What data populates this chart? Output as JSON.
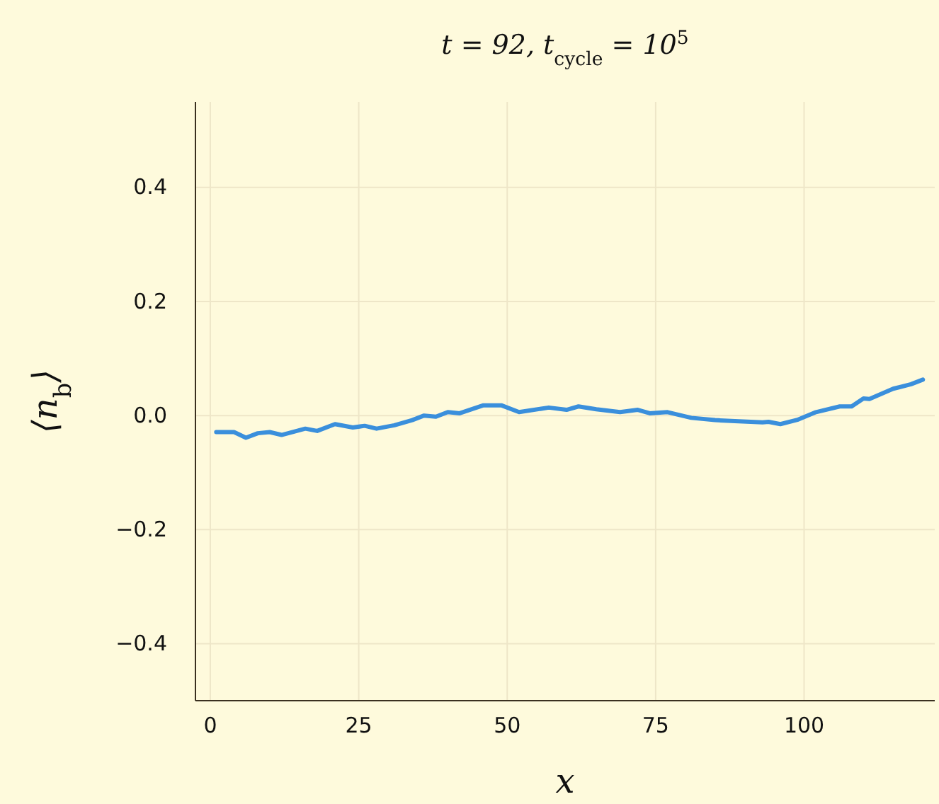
{
  "chart_data": {
    "type": "line",
    "title": "t = 92, t$_{cycle}$ = 10$^{5}$",
    "xlabel": "x",
    "ylabel": "⟨n$_{b}$⟩",
    "x": [
      1,
      4,
      6,
      8,
      10,
      12,
      16,
      18,
      21,
      24,
      26,
      28,
      31,
      34,
      36,
      38,
      40,
      42,
      46,
      49,
      52,
      57,
      60,
      62,
      65,
      69,
      72,
      74,
      77,
      81,
      85,
      89,
      93,
      94,
      96,
      99,
      102,
      106,
      108,
      110,
      111,
      115,
      118,
      120
    ],
    "series": [
      {
        "color": "#3a8fdc",
        "values": [
          -0.029,
          -0.029,
          -0.039,
          -0.031,
          -0.029,
          -0.034,
          -0.023,
          -0.027,
          -0.015,
          -0.021,
          -0.018,
          -0.023,
          -0.017,
          -0.008,
          0.0,
          -0.002,
          0.006,
          0.004,
          0.018,
          0.018,
          0.006,
          0.014,
          0.01,
          0.016,
          0.011,
          0.006,
          0.01,
          0.004,
          0.006,
          -0.004,
          -0.008,
          -0.01,
          -0.012,
          -0.011,
          -0.015,
          -0.007,
          0.006,
          0.016,
          0.016,
          0.03,
          0.029,
          0.047,
          0.055,
          0.063
        ]
      }
    ],
    "xlim": [
      -2.5,
      122
    ],
    "xticks": [
      0,
      25,
      50,
      75,
      100
    ],
    "ylim": [
      -0.5,
      0.55
    ],
    "yticks": [
      {
        "value": -0.4,
        "label": "−0.4"
      },
      {
        "value": -0.2,
        "label": "−0.2"
      },
      {
        "value": 0,
        "label": "0.0"
      },
      {
        "value": 0.2,
        "label": "0.2"
      },
      {
        "value": 0.4,
        "label": "0.4"
      }
    ],
    "grid": true,
    "line_style": "solid",
    "marker": "none"
  }
}
